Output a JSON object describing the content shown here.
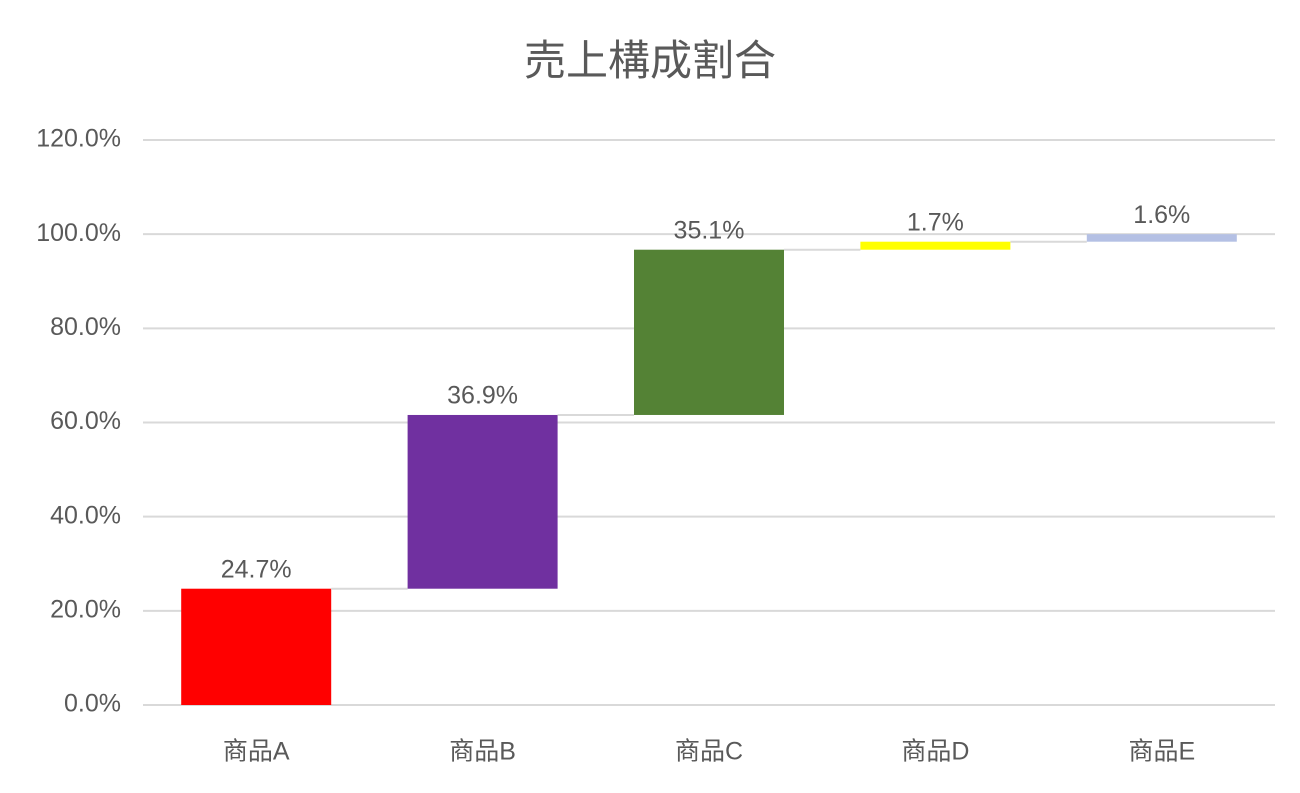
{
  "chart_data": {
    "type": "waterfall",
    "title": "売上構成割合",
    "categories": [
      "商品A",
      "商品B",
      "商品C",
      "商品D",
      "商品E"
    ],
    "values": [
      24.7,
      36.9,
      35.1,
      1.7,
      1.6
    ],
    "value_labels": [
      "24.7%",
      "36.9%",
      "35.1%",
      "1.7%",
      "1.6%"
    ],
    "colors": [
      "#ff0000",
      "#7030a0",
      "#548235",
      "#ffff00",
      "#b4c0e4"
    ],
    "ylim": [
      0,
      120
    ],
    "yticks": [
      {
        "value": 0,
        "label": "0.0%"
      },
      {
        "value": 20,
        "label": "20.0%"
      },
      {
        "value": 40,
        "label": "40.0%"
      },
      {
        "value": 60,
        "label": "60.0%"
      },
      {
        "value": 80,
        "label": "80.0%"
      },
      {
        "value": 100,
        "label": "100.0%"
      },
      {
        "value": 120,
        "label": "120.0%"
      }
    ],
    "grid": true
  }
}
